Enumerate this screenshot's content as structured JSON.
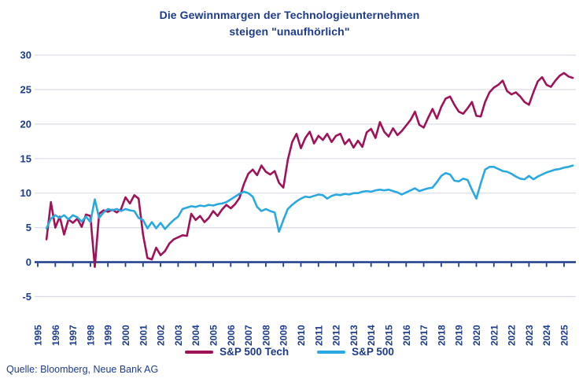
{
  "title": {
    "line1": "Die Gewinnmargen der Technologieunternehmen",
    "line2": "steigen \"unaufhörlich\""
  },
  "source": "Quelle: Bloomberg, Neue Bank AG",
  "colors": {
    "navy_text": "#1d3b8b",
    "axis": "#1d3b8b",
    "grid": "#d9dde8",
    "tech_line": "#9f1257",
    "sp500_line": "#2aa9e0",
    "background": "#ffffff"
  },
  "chart_data": {
    "type": "line",
    "title": "Die Gewinnmargen der Technologieunternehmen steigen \"unaufhörlich\"",
    "xlabel": "",
    "ylabel": "",
    "unit": "percent (profit margin)",
    "grid": true,
    "legend_position": "bottom",
    "ylim": [
      -5,
      30
    ],
    "y_ticks": [
      -5,
      0,
      5,
      10,
      15,
      20,
      25,
      30
    ],
    "x_tick_years": [
      1995,
      1996,
      1997,
      1998,
      1999,
      2000,
      2001,
      2002,
      2003,
      2004,
      2005,
      2006,
      2007,
      2008,
      2009,
      2010,
      2011,
      2012,
      2013,
      2014,
      2015,
      2016,
      2017,
      2018,
      2019,
      2020,
      2021,
      2022,
      2023,
      2024,
      2025
    ],
    "x_start": 1995.5,
    "x_step_years": 0.25,
    "series": [
      {
        "name": "S&P 500 Tech",
        "color": "#9f1257",
        "values": [
          3.3,
          8.7,
          5.0,
          6.6,
          4.0,
          6.2,
          5.7,
          6.3,
          5.1,
          6.9,
          6.7,
          -0.7,
          7.0,
          7.5,
          7.3,
          7.6,
          7.2,
          7.7,
          9.4,
          8.5,
          9.7,
          9.2,
          4.0,
          0.6,
          0.4,
          2.1,
          1.0,
          1.6,
          2.7,
          3.3,
          3.6,
          3.9,
          3.8,
          7.0,
          6.1,
          6.7,
          5.8,
          6.4,
          7.4,
          6.7,
          7.6,
          8.3,
          7.8,
          8.4,
          9.3,
          11.3,
          12.8,
          13.4,
          12.6,
          14.0,
          13.1,
          12.7,
          13.2,
          11.5,
          10.8,
          14.8,
          17.4,
          18.6,
          16.5,
          18.0,
          18.9,
          17.2,
          18.3,
          17.7,
          18.6,
          17.4,
          18.3,
          18.6,
          17.1,
          17.8,
          16.6,
          17.6,
          16.7,
          18.8,
          19.3,
          18.0,
          20.3,
          18.9,
          18.2,
          19.4,
          18.4,
          19.0,
          19.8,
          20.6,
          21.8,
          19.9,
          19.5,
          20.9,
          22.2,
          20.8,
          22.5,
          23.7,
          24.0,
          22.8,
          21.8,
          21.5,
          22.3,
          23.2,
          21.2,
          21.1,
          23.2,
          24.6,
          25.3,
          25.7,
          26.3,
          24.8,
          24.3,
          24.6,
          24.0,
          23.2,
          22.8,
          24.6,
          26.2,
          26.8,
          25.7,
          25.4,
          26.3,
          27.0,
          27.4,
          26.9,
          26.7
        ]
      },
      {
        "name": "S&P 500",
        "color": "#2aa9e0",
        "values": [
          4.9,
          6.3,
          6.8,
          6.4,
          6.8,
          6.2,
          6.8,
          6.5,
          5.9,
          6.6,
          5.8,
          9.1,
          6.4,
          7.2,
          7.7,
          7.5,
          7.7,
          7.4,
          7.7,
          7.5,
          7.4,
          6.4,
          6.1,
          4.9,
          5.8,
          4.9,
          5.7,
          4.8,
          5.5,
          6.1,
          6.6,
          7.7,
          7.9,
          8.1,
          8.0,
          8.2,
          8.1,
          8.3,
          8.2,
          8.4,
          8.5,
          8.7,
          9.1,
          9.5,
          9.9,
          10.2,
          10.0,
          9.5,
          8.0,
          7.4,
          7.7,
          7.4,
          7.2,
          4.4,
          6.1,
          7.7,
          8.3,
          8.8,
          9.2,
          9.5,
          9.4,
          9.6,
          9.8,
          9.7,
          9.2,
          9.6,
          9.8,
          9.7,
          9.9,
          9.8,
          10.0,
          10.0,
          10.2,
          10.3,
          10.2,
          10.4,
          10.5,
          10.4,
          10.5,
          10.3,
          10.1,
          9.8,
          10.1,
          10.4,
          10.7,
          10.3,
          10.5,
          10.7,
          10.8,
          11.6,
          12.5,
          12.9,
          12.7,
          11.8,
          11.7,
          12.1,
          11.9,
          10.5,
          9.2,
          11.4,
          13.4,
          13.8,
          13.8,
          13.5,
          13.2,
          13.1,
          12.8,
          12.4,
          12.1,
          12.0,
          12.5,
          12.0,
          12.4,
          12.7,
          13.0,
          13.2,
          13.4,
          13.5,
          13.7,
          13.8,
          14.0
        ]
      }
    ]
  }
}
